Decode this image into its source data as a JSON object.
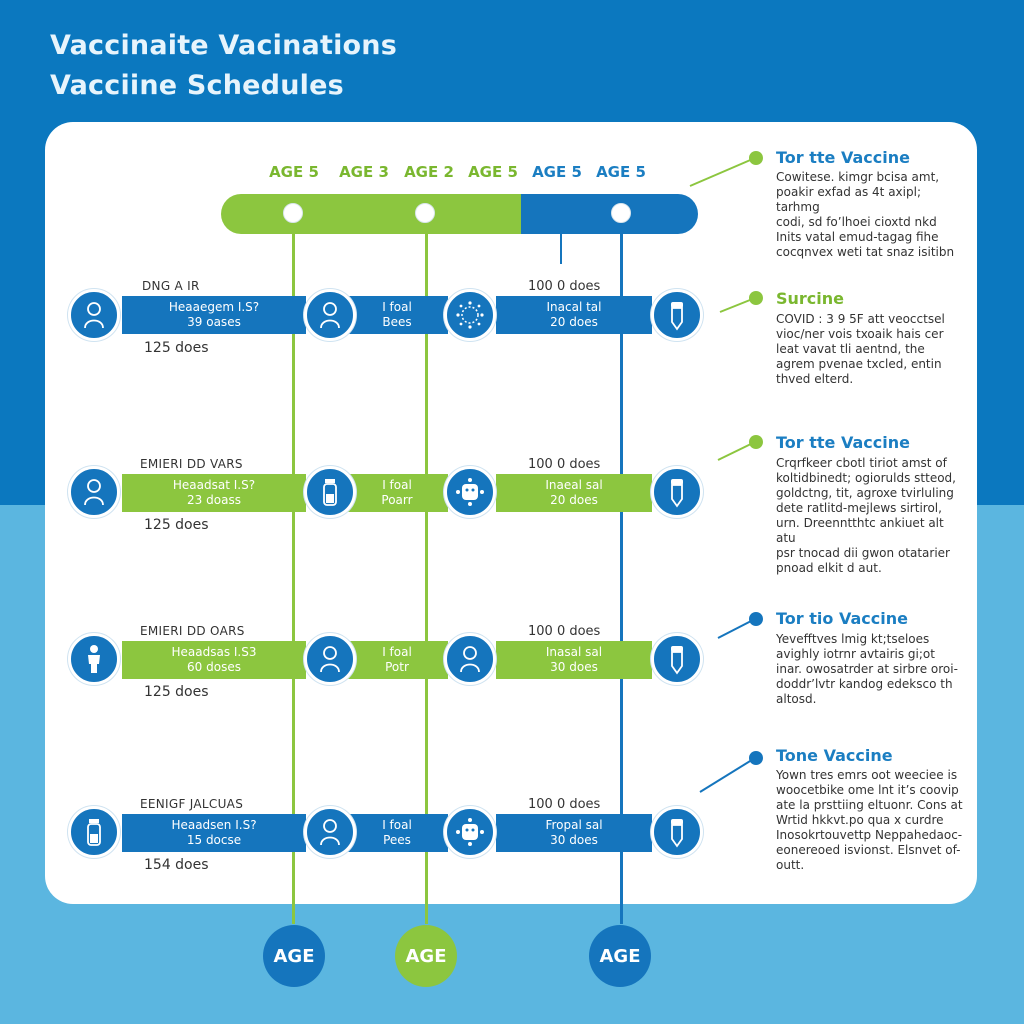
{
  "title": [
    "Vaccinaite Vacinations",
    "Vacciine Schedules"
  ],
  "colors": {
    "green": "#8cc63f",
    "blue": "#1575bd",
    "text_green": "#7ab72f",
    "text_blue": "#1b7ec2"
  },
  "timeline": {
    "ages": [
      {
        "label": "AGE 5",
        "color": "green"
      },
      {
        "label": "AGE 3",
        "color": "green"
      },
      {
        "label": "AGE 2",
        "color": "green"
      },
      {
        "label": "AGE 5",
        "color": "green"
      },
      {
        "label": "AGE 5",
        "color": "blue"
      },
      {
        "label": "AGE 5",
        "color": "blue"
      }
    ]
  },
  "rows": [
    {
      "label": "DNG A IR",
      "bar_color": "blue",
      "left_bar": [
        "Heaaegem I.S?",
        "39 oases"
      ],
      "mid_bar": [
        "I foal",
        "Bees"
      ],
      "right_bar": [
        "Inacal tal",
        "20 does"
      ],
      "doses_left": "125 does",
      "doses_right": "100 0 does",
      "icons": [
        "child-icon",
        "child-icon",
        "virus-icon",
        "vaccine-vial-icon"
      ]
    },
    {
      "label": "EMIERI DD VARS",
      "bar_color": "green",
      "left_bar": [
        "Heaadsat I.S?",
        "23 doass"
      ],
      "mid_bar": [
        "I foal",
        "Poarr"
      ],
      "right_bar": [
        "Inaeal sal",
        "20 does"
      ],
      "doses_left": "125 does",
      "doses_right": "100 0 does",
      "icons": [
        "child-icon",
        "vial-icon",
        "virus-icon",
        "vaccine-vial-icon"
      ]
    },
    {
      "label": "EMIERI DD OARS",
      "bar_color": "green",
      "left_bar": [
        "Heaadsas I.S3",
        "60 doses"
      ],
      "mid_bar": [
        "I foal",
        "Potr"
      ],
      "right_bar": [
        "Inasal sal",
        "30 does"
      ],
      "doses_left": "125 does",
      "doses_right": "100 0 does",
      "icons": [
        "person-icon",
        "child-icon",
        "child-icon",
        "vaccine-vial-icon"
      ]
    },
    {
      "label": "EENIGF JALCUAS",
      "bar_color": "blue",
      "left_bar": [
        "Heaadsen I.S?",
        "15 docse"
      ],
      "mid_bar": [
        "I foal",
        "Pees"
      ],
      "right_bar": [
        "Fropal sal",
        "30 does"
      ],
      "doses_left": "154 does",
      "doses_right": "100 0 does",
      "icons": [
        "vial-icon",
        "child-icon",
        "virus-icon",
        "vaccine-vial-icon"
      ]
    }
  ],
  "sidebar": [
    {
      "dot_color": "green",
      "heading": "Tor tte Vaccine",
      "lines": [
        "Cowitese. kimgr bcisa amt,",
        "poakir exfad as 4t axipl; tarhmg",
        "codi, sd fo’lhoei cioxtd nkd",
        "Inits vatal emud-tagag fihe",
        "cocqnvex weti tat snaz isitibn"
      ]
    },
    {
      "dot_color": "green",
      "heading": "Surcine",
      "lines": [
        "COVID : 3 9 5F att veocctsel",
        "vioc/ner vois txoaik hais cer",
        "leat vavat tli aentnd, the",
        "agrem pvenae txcled, entin",
        "thved elterd."
      ]
    },
    {
      "dot_color": "green",
      "heading": "Tor tte Vaccine",
      "lines": [
        "Crqrfkeer cbotl tiriot amst of",
        "koltidbinedt; ogiorulds stteod,",
        "goldctng, tit, agroxe tvirluling",
        "dete ratlitd-mejlews sirtirol,",
        "urn. Dreenntthtc ankiuet alt atu",
        "psr tnocad dii gwon otatarier",
        "pnoad elkit d aut."
      ]
    },
    {
      "dot_color": "blue",
      "heading": "Tor tio Vaccine",
      "lines": [
        "Yevefftves  lmig kt;tseloes",
        "avighly iotrnr avtairis gi;ot",
        "inar. owosatrder at sirbre oroi-",
        "doddr’lvtr kandog edeksco th",
        "altosd."
      ]
    },
    {
      "dot_color": "blue",
      "heading": "Tone Vaccine",
      "lines": [
        "Yown tres emrs oot weeciee is",
        "woocetbike ome lnt it’s coovip",
        "ate la prsttiing eltuonr. Cons at",
        "Wrtid hkkvt.po qua x curdre",
        "Inosokrtouvettp Neppahedaoc-",
        "eonereoed isvionst. Elsnvet of-",
        "outt."
      ]
    }
  ],
  "bottom_badges": [
    {
      "label": "AGE",
      "color": "blue"
    },
    {
      "label": "AGE",
      "color": "green"
    },
    {
      "label": "AGE",
      "color": "blue"
    }
  ]
}
